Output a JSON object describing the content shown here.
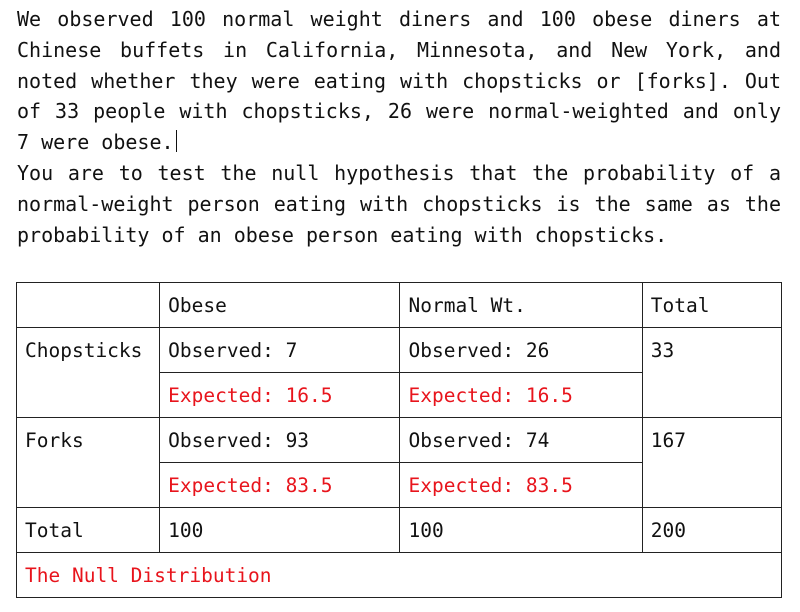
{
  "problem": {
    "paragraph1": "We observed 100 normal weight diners and 100 obese diners at Chinese buffets in California, Minnesota, and New York, and noted whether they were eating with chopsticks or [forks]. Out of 33 people with chopsticks, 26 were normal-weighted and only 7 were obese.",
    "paragraph2": "You are to test the null hypothesis that the probability of a normal-weight person eating with chopsticks is the same as the probability of an obese person eating with chopsticks."
  },
  "table": {
    "headers": [
      "",
      "Obese",
      "Normal Wt.",
      "Total"
    ],
    "rows": [
      {
        "label": "Chopsticks",
        "obese_observed": "Observed: 7",
        "normal_observed": "Observed: 26",
        "obese_expected": "Expected: 16.5",
        "normal_expected": "Expected: 16.5",
        "total": "33"
      },
      {
        "label": "Forks",
        "obese_observed": "Observed: 93",
        "normal_observed": "Observed: 74",
        "obese_expected": "Expected: 83.5",
        "normal_expected": "Expected: 83.5",
        "total": "167"
      }
    ],
    "totals": {
      "label": "Total",
      "obese": "100",
      "normal": "100",
      "grand": "200"
    },
    "footer": "The Null Distribution"
  },
  "colors": {
    "expected_text": "#e8141c",
    "text": "#111111",
    "border": "#222222"
  }
}
